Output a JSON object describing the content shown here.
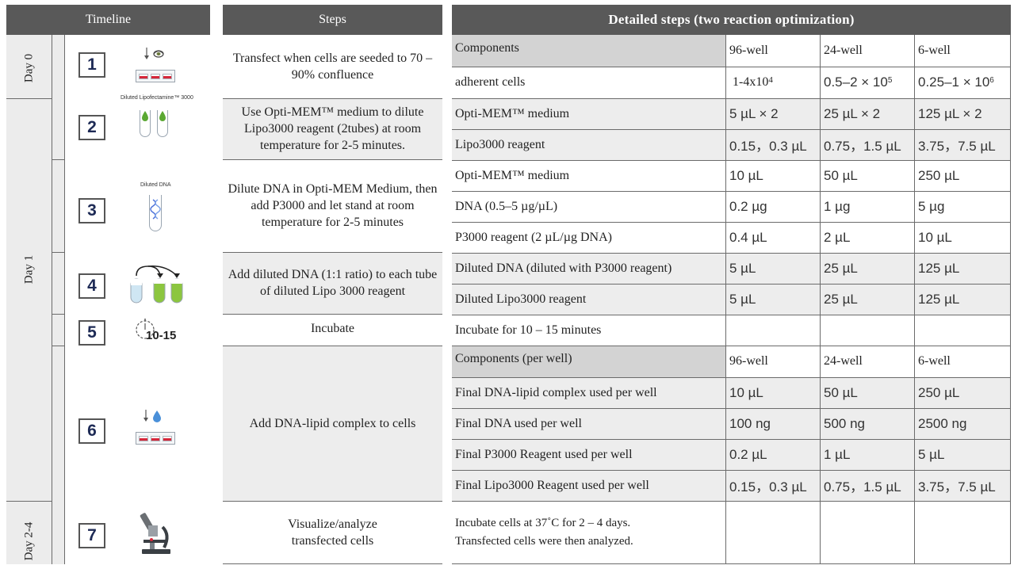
{
  "headers": {
    "timeline": "Timeline",
    "steps": "Steps",
    "detailed": "Detailed steps (two reaction optimization)"
  },
  "days": [
    "Day 0",
    "Day 1",
    "Day 2-4"
  ],
  "step_numbers": [
    "1",
    "2",
    "3",
    "4",
    "5",
    "6",
    "7"
  ],
  "icon_text": {
    "diluted_lipo": "Diluted Lipofectamine™ 3000",
    "diluted_dna": "Diluted DNA",
    "timer": "10-15"
  },
  "steps": [
    "Transfect when cells are seeded to 70 – 90% confluence",
    "Use Opti-MEM™ medium to dilute Lipo3000 reagent (2tubes) at room temperature for 2-5 minutes.",
    "Dilute DNA in Opti-MEM Medium, then add P3000 and let stand at room temperature for 2-5 minutes",
    "Add diluted DNA (1:1 ratio) to each tube of diluted Lipo 3000 reagent",
    "Incubate",
    "Add DNA-lipid complex to cells",
    "Visualize/analyze transfected cells"
  ],
  "table": {
    "components_header": [
      "Components",
      "96-well",
      "24-well",
      "6-well"
    ],
    "adherent": {
      "label": "adherent cells",
      "w96": "1-4x10",
      "w96_exp": "4",
      "w24": "0.5–2 × 10",
      "w24_exp": "5",
      "w6": "0.25–1 × 10",
      "w6_exp": "6"
    },
    "rows_a": [
      [
        "Opti-MEM™ medium",
        "5 µL × 2",
        "25 µL × 2",
        "125 µL × 2"
      ],
      [
        "Lipo3000 reagent",
        "0.15，0.3 µL",
        "0.75，1.5 µL",
        "3.75，7.5 µL"
      ],
      [
        "Opti-MEM™ medium",
        "10 µL",
        "50 µL",
        "250 µL"
      ],
      [
        "DNA (0.5–5 µg/µL)",
        "0.2 µg",
        "1 µg",
        "5 µg"
      ],
      [
        "P3000 reagent (2 µL/µg DNA)",
        "0.4 µL",
        "2 µL",
        "10 µL"
      ],
      [
        "Diluted DNA (diluted with P3000 reagent)",
        "5 µL",
        "25 µL",
        "125 µL"
      ],
      [
        "Diluted Lipo3000 reagent",
        "5 µL",
        "25 µL",
        "125 µL"
      ]
    ],
    "incubate_row": "Incubate for 10 – 15 minutes",
    "per_well_header": [
      "Components (per well)",
      "96-well",
      "24-well",
      "6-well"
    ],
    "rows_b": [
      [
        "Final DNA-lipid complex used per well",
        "10 µL",
        "50 µL",
        "250 µL"
      ],
      [
        "Final DNA used per well",
        "100 ng",
        "500 ng",
        "2500 ng"
      ],
      [
        "Final P3000 Reagent used per well",
        "0.2 µL",
        "1 µL",
        "5 µL"
      ],
      [
        "Final Lipo3000 Reagent used per well",
        "0.15，0.3 µL",
        "0.75，1.5 µL",
        "3.75，7.5 µL"
      ]
    ],
    "final_note_1": "Incubate cells at 37˚C for 2 – 4 days.",
    "final_note_2": "Transfected cells were then analyzed."
  },
  "colors": {
    "header_bg": "#595959",
    "row_grey": "#ededed",
    "row_dark": "#d3d3d3",
    "drop_green": "#5aa832",
    "drop_blue": "#4a90d9",
    "well_red": "#d6273a",
    "number_navy": "#1d2a55"
  }
}
